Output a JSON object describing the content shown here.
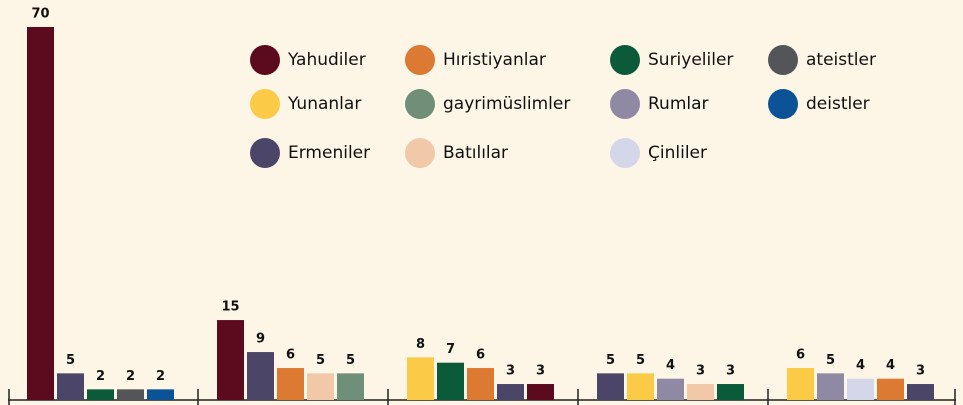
{
  "chart_data": {
    "type": "bar",
    "legend": [
      {
        "name": "Yahudiler",
        "color": "#5c0a1e"
      },
      {
        "name": "Hıristiyanlar",
        "color": "#dc7a34"
      },
      {
        "name": "Suriyeliler",
        "color": "#0b5b3b"
      },
      {
        "name": "ateistler",
        "color": "#545558"
      },
      {
        "name": "Yunanlar",
        "color": "#fbcb47"
      },
      {
        "name": "gayrimüslimler",
        "color": "#6f8f79"
      },
      {
        "name": "Rumlar",
        "color": "#8f89a3"
      },
      {
        "name": "deistler",
        "color": "#0b5396"
      },
      {
        "name": "Ermeniler",
        "color": "#4b4667"
      },
      {
        "name": "Batılılar",
        "color": "#f1c9a8"
      },
      {
        "name": "Çinliler",
        "color": "#d4d7ea"
      }
    ],
    "groups": [
      [
        {
          "series": "Yahudiler",
          "value": 70
        },
        {
          "series": "Ermeniler",
          "value": 5
        },
        {
          "series": "Suriyeliler",
          "value": 2
        },
        {
          "series": "ateistler",
          "value": 2
        },
        {
          "series": "deistler",
          "value": 2
        }
      ],
      [
        {
          "series": "Yahudiler",
          "value": 15
        },
        {
          "series": "Ermeniler",
          "value": 9
        },
        {
          "series": "Hıristiyanlar",
          "value": 6
        },
        {
          "series": "Batılılar",
          "value": 5
        },
        {
          "series": "gayrimüslimler",
          "value": 5
        }
      ],
      [
        {
          "series": "Yunanlar",
          "value": 8
        },
        {
          "series": "Suriyeliler",
          "value": 7
        },
        {
          "series": "Hıristiyanlar",
          "value": 6
        },
        {
          "series": "Ermeniler",
          "value": 3
        },
        {
          "series": "Yahudiler",
          "value": 3
        }
      ],
      [
        {
          "series": "Ermeniler",
          "value": 5
        },
        {
          "series": "Yunanlar",
          "value": 5
        },
        {
          "series": "Rumlar",
          "value": 4
        },
        {
          "series": "Batılılar",
          "value": 3
        },
        {
          "series": "Suriyeliler",
          "value": 3
        }
      ],
      [
        {
          "series": "Yunanlar",
          "value": 6
        },
        {
          "series": "Rumlar",
          "value": 5
        },
        {
          "series": "Çinliler",
          "value": 4
        },
        {
          "series": "Hıristiyanlar",
          "value": 4
        },
        {
          "series": "Ermeniler",
          "value": 3
        }
      ]
    ],
    "ylim": [
      0,
      70
    ]
  }
}
